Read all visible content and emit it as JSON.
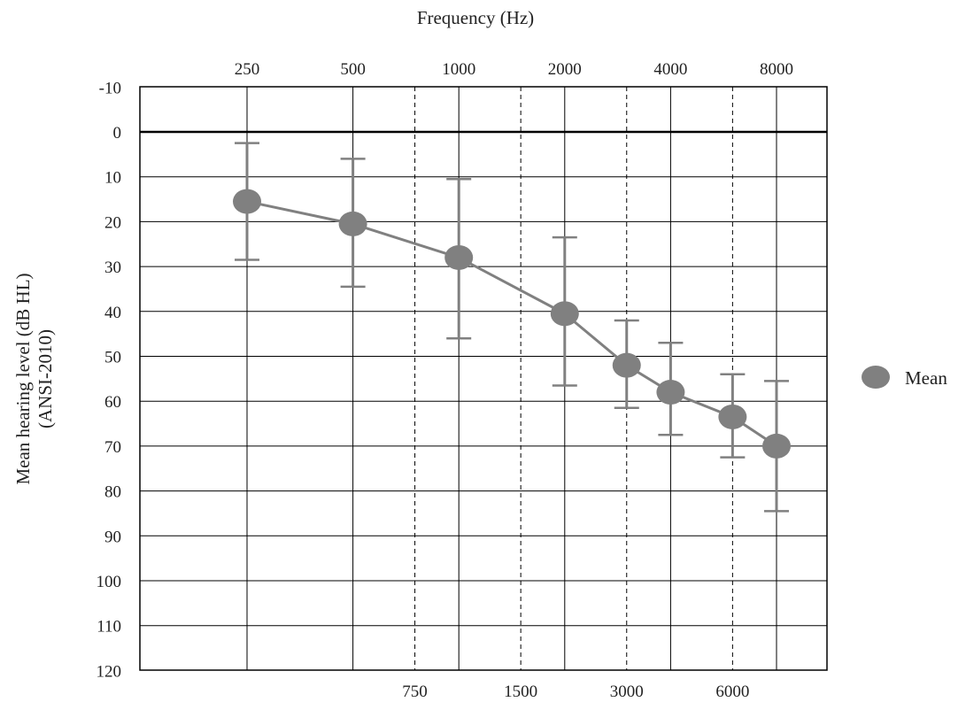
{
  "chart_data": {
    "type": "line",
    "title": "",
    "xlabel": "Frequency  (Hz)",
    "ylabel": "Mean hearing level (dB HL)",
    "ylabel_line2": "(ANSI-2010)",
    "y_axis_inverted": true,
    "ylim": [
      -10,
      120
    ],
    "y_ticks": [
      "-10",
      "0",
      "10",
      "20",
      "30",
      "40",
      "50",
      "60",
      "70",
      "80",
      "90",
      "100",
      "110",
      "120"
    ],
    "x_ticks_octave": [
      "250",
      "500",
      "1000",
      "2000",
      "4000",
      "8000"
    ],
    "x_ticks_interoctave": [
      "750",
      "1500",
      "3000",
      "6000"
    ],
    "x_scale": "log",
    "grid": true,
    "legend_position": "right",
    "series": [
      {
        "name": "Mean",
        "color": "#808080",
        "points": [
          {
            "x": 250,
            "y": 15.5,
            "err_low": 2.5,
            "err_high": 28.5
          },
          {
            "x": 500,
            "y": 20.5,
            "err_low": 6,
            "err_high": 34.5
          },
          {
            "x": 1000,
            "y": 28,
            "err_low": 10.5,
            "err_high": 46
          },
          {
            "x": 2000,
            "y": 40.5,
            "err_low": 23.5,
            "err_high": 56.5
          },
          {
            "x": 3000,
            "y": 52,
            "err_low": 42,
            "err_high": 61.5
          },
          {
            "x": 4000,
            "y": 58,
            "err_low": 47,
            "err_high": 67.5
          },
          {
            "x": 6000,
            "y": 63.5,
            "err_low": 54,
            "err_high": 72.5
          },
          {
            "x": 8000,
            "y": 70,
            "err_low": 55.5,
            "err_high": 84.5
          }
        ]
      }
    ]
  }
}
